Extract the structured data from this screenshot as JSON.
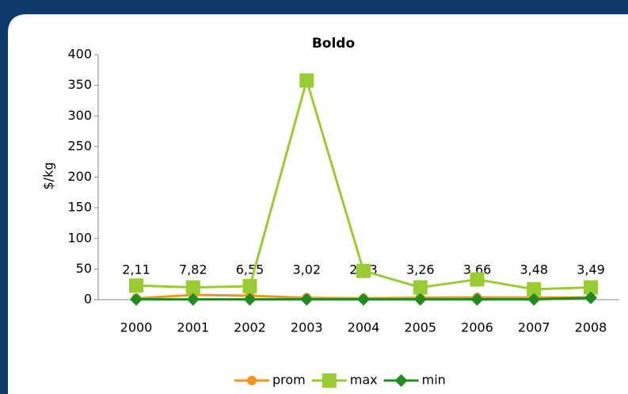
{
  "chart_data": {
    "type": "line",
    "title": "Boldo",
    "y_label": "$/kg",
    "categories": [
      "2000",
      "2001",
      "2002",
      "2003",
      "2004",
      "2005",
      "2006",
      "2007",
      "2008"
    ],
    "series": [
      {
        "name": "prom",
        "color": "#f7941d",
        "marker": "circle",
        "values": [
          2.11,
          7.82,
          6.55,
          3.02,
          2.23,
          3.26,
          3.66,
          3.48,
          3.49
        ],
        "value_labels": [
          "2,11",
          "7,82",
          "6,55",
          "3,02",
          "2,23",
          "3,26",
          "3,66",
          "3,48",
          "3,49"
        ]
      },
      {
        "name": "max",
        "color": "#99cc33",
        "marker": "square",
        "values": [
          23,
          20,
          22,
          358,
          47,
          20,
          33,
          17,
          20
        ]
      },
      {
        "name": "min",
        "color": "#1e8c1e",
        "marker": "diamond",
        "values": [
          0.5,
          0.5,
          0.5,
          0.5,
          0.5,
          0.5,
          0.5,
          0.5,
          3
        ]
      }
    ],
    "ylim": [
      0,
      400
    ],
    "yticks": [
      0,
      50,
      100,
      150,
      200,
      250,
      300,
      350,
      400
    ],
    "legend": "bottom"
  }
}
